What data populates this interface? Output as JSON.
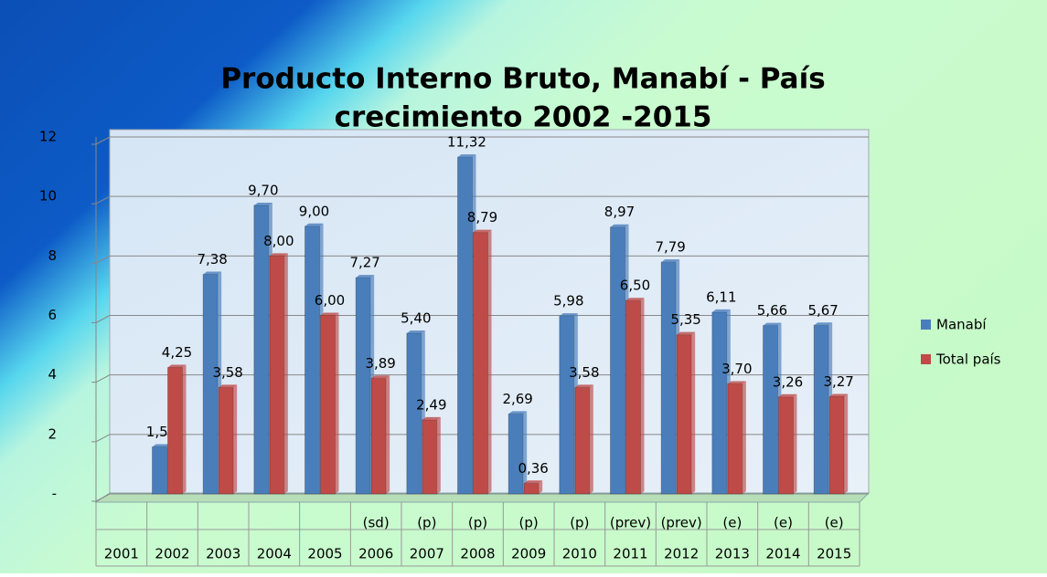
{
  "chart_data": {
    "type": "bar",
    "title_lines": [
      "Producto Interno  Bruto, Manabí - País",
      "crecimiento 2002 -2015"
    ],
    "categories": [
      "2001",
      "2002",
      "2003",
      "2004",
      "2005",
      "2006",
      "2007",
      "2008",
      "2009",
      "2010",
      "2011",
      "2012",
      "2013",
      "2014",
      "2015"
    ],
    "category_notes": [
      null,
      null,
      null,
      null,
      null,
      "(sd)",
      "(p)",
      "(p)",
      "(p)",
      "(p)",
      "(prev)",
      "(prev)",
      "(e)",
      "(e)",
      "(e)"
    ],
    "series": [
      {
        "name": "Manabí",
        "color": "#4a7ebb",
        "values": [
          null,
          1.58,
          7.38,
          9.7,
          9.0,
          7.27,
          5.4,
          11.32,
          2.69,
          5.98,
          8.97,
          7.79,
          6.11,
          5.66,
          5.67
        ],
        "value_labels": [
          null,
          "1,58",
          "7,38",
          "9,70",
          "9,00",
          "7,27",
          "5,40",
          "11,32",
          "2,69",
          "5,98",
          "8,97",
          "7,79",
          "6,11",
          "5,66",
          "5,67"
        ]
      },
      {
        "name": "Total país",
        "color": "#be4b48",
        "values": [
          null,
          4.25,
          3.58,
          8.0,
          6.0,
          3.89,
          2.49,
          8.79,
          0.36,
          3.58,
          6.5,
          5.35,
          3.7,
          3.26,
          3.27
        ],
        "value_labels": [
          null,
          "4,25",
          "3,58",
          "8,00",
          "6,00",
          "3,89",
          "2,49",
          "8,79",
          "0,36",
          "3,58",
          "6,50",
          "5,35",
          "3,70",
          "3,26",
          "3,27"
        ]
      }
    ],
    "ylim": [
      0,
      12
    ],
    "yticks": [
      {
        "value": 0,
        "label": "-"
      },
      2,
      4,
      6,
      8,
      10,
      12
    ],
    "grid": true,
    "legend": "right"
  }
}
